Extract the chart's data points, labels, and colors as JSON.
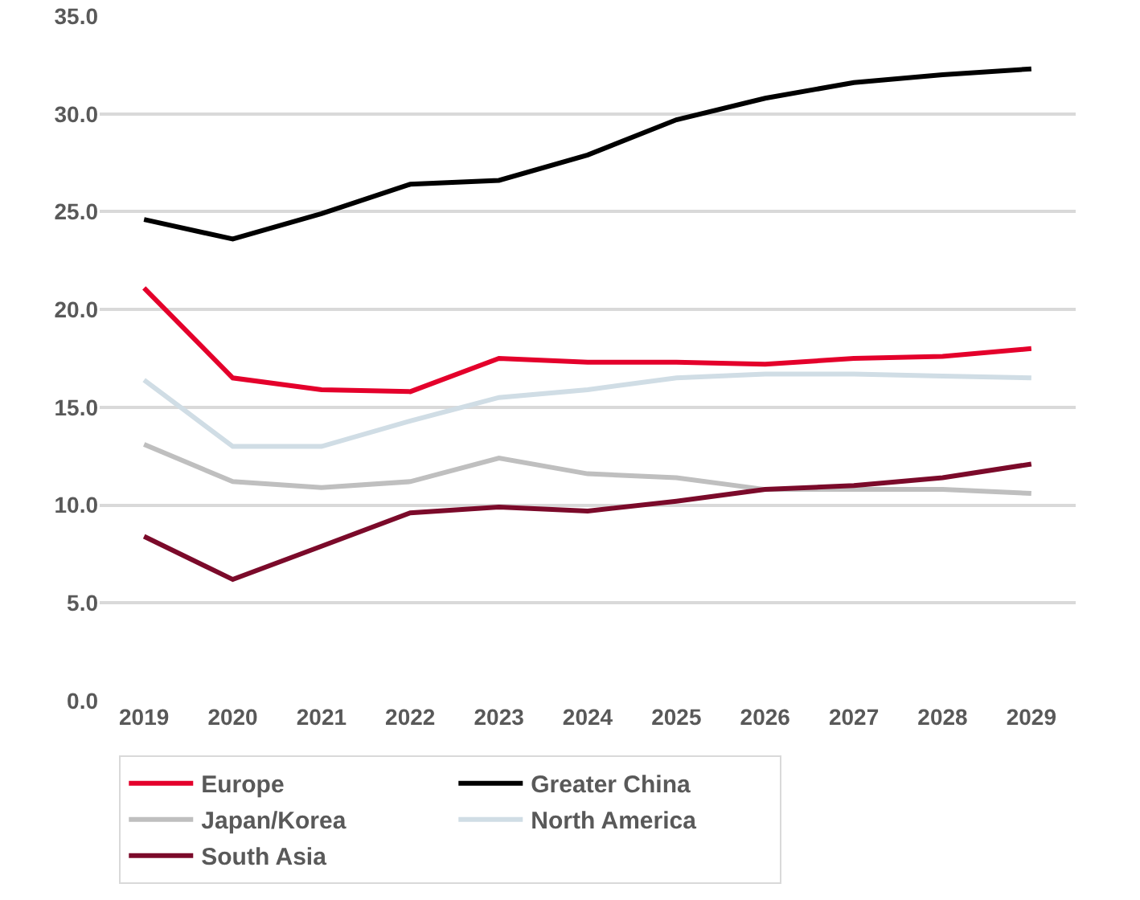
{
  "chart_data": {
    "type": "line",
    "categories": [
      "2019",
      "2020",
      "2021",
      "2022",
      "2023",
      "2024",
      "2025",
      "2026",
      "2027",
      "2028",
      "2029"
    ],
    "series": [
      {
        "name": "Europe",
        "color": "#e4002b",
        "values": [
          21.1,
          16.5,
          15.9,
          15.8,
          17.5,
          17.3,
          17.3,
          17.2,
          17.5,
          17.6,
          18.0
        ]
      },
      {
        "name": "Greater China",
        "color": "#000000",
        "values": [
          24.6,
          23.6,
          24.9,
          26.4,
          26.6,
          27.9,
          29.7,
          30.8,
          31.6,
          32.0,
          32.3
        ]
      },
      {
        "name": "Japan/Korea",
        "color": "#bfbfbf",
        "values": [
          13.1,
          11.2,
          10.9,
          11.2,
          12.4,
          11.6,
          11.4,
          10.8,
          10.8,
          10.8,
          10.6
        ]
      },
      {
        "name": "North America",
        "color": "#d0dde5",
        "values": [
          16.4,
          13.0,
          13.0,
          14.3,
          15.5,
          15.9,
          16.5,
          16.7,
          16.7,
          16.6,
          16.5
        ]
      },
      {
        "name": "South Asia",
        "color": "#7b0a2a",
        "values": [
          8.4,
          6.2,
          7.9,
          9.6,
          9.9,
          9.7,
          10.2,
          10.8,
          11.0,
          11.4,
          12.1
        ]
      }
    ],
    "ylim": [
      0,
      35
    ],
    "yticks": [
      {
        "value": 0,
        "label": "0.0"
      },
      {
        "value": 5,
        "label": "5.0"
      },
      {
        "value": 10,
        "label": "10.0"
      },
      {
        "value": 15,
        "label": "15.0"
      },
      {
        "value": 20,
        "label": "20.0"
      },
      {
        "value": 25,
        "label": "25.0"
      },
      {
        "value": 30,
        "label": "30.0"
      },
      {
        "value": 35,
        "label": "35.0"
      }
    ],
    "grid": "y",
    "legend": "bottom",
    "marker": "none",
    "line_style": "solid"
  }
}
